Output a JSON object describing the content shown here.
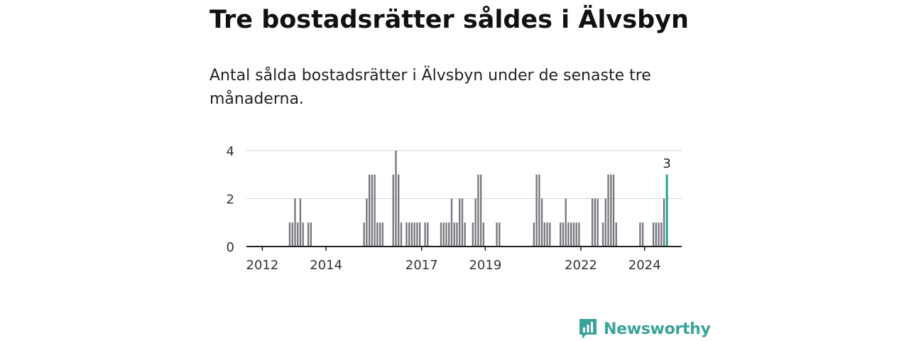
{
  "title": "Tre bostadsrätter såldes i Älvsbyn",
  "subtitle": "Antal sålda bostadsrätter i Älvsbyn under de senaste tre månaderna.",
  "brand": "Newsworthy",
  "colors": {
    "bar": "#76767e",
    "highlight": "#22a198",
    "grid": "#d6d6d6",
    "axis": "#222222",
    "brand": "#3aa39a"
  },
  "chart_data": {
    "type": "bar",
    "title": "",
    "xlabel": "",
    "ylabel": "",
    "ylim": [
      0,
      4
    ],
    "yticks": [
      0,
      2,
      4
    ],
    "xticks": [
      "2012",
      "2014",
      "2017",
      "2019",
      "2022",
      "2024"
    ],
    "x_start": "2011-07",
    "x_end": "2025-03",
    "highlight_label": "3",
    "grid": true,
    "series": [
      {
        "x": [
          "2012-11",
          "2012-12",
          "2013-01",
          "2013-02",
          "2013-03",
          "2013-04",
          "2013-06",
          "2013-07",
          "2015-03",
          "2015-04",
          "2015-05",
          "2015-06",
          "2015-07",
          "2015-08",
          "2015-09",
          "2015-10",
          "2016-02",
          "2016-03",
          "2016-04",
          "2016-05",
          "2016-07",
          "2016-08",
          "2016-09",
          "2016-10",
          "2016-11",
          "2016-12",
          "2017-02",
          "2017-03",
          "2017-08",
          "2017-09",
          "2017-10",
          "2017-11",
          "2017-12",
          "2018-01",
          "2018-02",
          "2018-03",
          "2018-04",
          "2018-05",
          "2018-08",
          "2018-09",
          "2018-10",
          "2018-11",
          "2018-12",
          "2019-05",
          "2019-06",
          "2020-07",
          "2020-08",
          "2020-09",
          "2020-10",
          "2020-11",
          "2020-12",
          "2021-01",
          "2021-05",
          "2021-06",
          "2021-07",
          "2021-08",
          "2021-09",
          "2021-10",
          "2021-11",
          "2021-12",
          "2022-05",
          "2022-06",
          "2022-07",
          "2022-09",
          "2022-10",
          "2022-11",
          "2022-12",
          "2023-01",
          "2023-02",
          "2023-11",
          "2023-12",
          "2024-04",
          "2024-05",
          "2024-06",
          "2024-07",
          "2024-08",
          "2024-09"
        ],
        "values": [
          1,
          1,
          2,
          1,
          2,
          1,
          1,
          1,
          1,
          2,
          3,
          3,
          3,
          1,
          1,
          1,
          3,
          4,
          3,
          1,
          1,
          1,
          1,
          1,
          1,
          1,
          1,
          1,
          1,
          1,
          1,
          1,
          2,
          1,
          1,
          2,
          2,
          1,
          1,
          2,
          3,
          3,
          1,
          1,
          1,
          1,
          3,
          3,
          2,
          1,
          1,
          1,
          1,
          1,
          2,
          1,
          1,
          1,
          1,
          1,
          2,
          2,
          2,
          1,
          2,
          3,
          3,
          3,
          1,
          1,
          1,
          1,
          1,
          1,
          1,
          2,
          3
        ]
      }
    ]
  }
}
